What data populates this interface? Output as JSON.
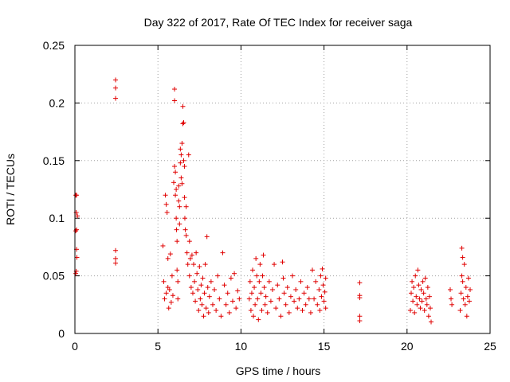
{
  "chart_data": {
    "type": "scatter",
    "title": "Day 322 of 2017, Rate Of TEC Index for receiver saga",
    "xlabel": "GPS time / hours",
    "ylabel": "ROTI / TECUs",
    "xlim": [
      0,
      25
    ],
    "ylim": [
      0,
      0.25
    ],
    "xticks": [
      0,
      5,
      10,
      15,
      20,
      25
    ],
    "yticks": [
      0,
      0.05,
      0.1,
      0.15,
      0.2,
      0.25
    ],
    "xtick_labels": [
      "0",
      "5",
      "10",
      "15",
      "20",
      "25"
    ],
    "ytick_labels": [
      "0",
      "0.05",
      "0.1",
      "0.15",
      "0.2",
      "0.25"
    ],
    "grid": true,
    "marker": "+",
    "color": "#e00000",
    "series": [
      {
        "name": "saga",
        "points": [
          [
            0.05,
            0.052
          ],
          [
            0.05,
            0.089
          ],
          [
            0.08,
            0.105
          ],
          [
            0.1,
            0.12
          ],
          [
            0.1,
            0.073
          ],
          [
            0.12,
            0.066
          ],
          [
            0.15,
            0.102
          ],
          [
            0.05,
            0.12
          ],
          [
            0.08,
            0.054
          ],
          [
            0.1,
            0.09
          ],
          [
            2.45,
            0.22
          ],
          [
            2.45,
            0.213
          ],
          [
            2.45,
            0.204
          ],
          [
            2.45,
            0.072
          ],
          [
            2.45,
            0.065
          ],
          [
            2.45,
            0.061
          ],
          [
            5.3,
            0.076
          ],
          [
            5.35,
            0.045
          ],
          [
            5.4,
            0.03
          ],
          [
            5.45,
            0.12
          ],
          [
            5.5,
            0.112
          ],
          [
            5.5,
            0.035
          ],
          [
            5.55,
            0.105
          ],
          [
            5.6,
            0.04
          ],
          [
            5.6,
            0.065
          ],
          [
            5.65,
            0.022
          ],
          [
            5.7,
            0.038
          ],
          [
            5.75,
            0.069
          ],
          [
            5.8,
            0.027
          ],
          [
            5.85,
            0.05
          ],
          [
            5.9,
            0.033
          ],
          [
            5.95,
            0.131
          ],
          [
            6.0,
            0.212
          ],
          [
            6.0,
            0.202
          ],
          [
            6.0,
            0.145
          ],
          [
            6.05,
            0.14
          ],
          [
            6.05,
            0.12
          ],
          [
            6.1,
            0.125
          ],
          [
            6.1,
            0.1
          ],
          [
            6.12,
            0.09
          ],
          [
            6.15,
            0.08
          ],
          [
            6.15,
            0.055
          ],
          [
            6.2,
            0.045
          ],
          [
            6.2,
            0.03
          ],
          [
            6.25,
            0.128
          ],
          [
            6.25,
            0.115
          ],
          [
            6.3,
            0.11
          ],
          [
            6.3,
            0.095
          ],
          [
            6.35,
            0.16
          ],
          [
            6.35,
            0.148
          ],
          [
            6.4,
            0.155
          ],
          [
            6.4,
            0.135
          ],
          [
            6.45,
            0.165
          ],
          [
            6.45,
            0.13
          ],
          [
            6.5,
            0.197
          ],
          [
            6.5,
            0.182
          ],
          [
            6.55,
            0.183
          ],
          [
            6.55,
            0.15
          ],
          [
            6.6,
            0.145
          ],
          [
            6.6,
            0.118
          ],
          [
            6.62,
            0.1
          ],
          [
            6.65,
            0.09
          ],
          [
            6.7,
            0.11
          ],
          [
            6.7,
            0.085
          ],
          [
            6.75,
            0.07
          ],
          [
            6.8,
            0.06
          ],
          [
            6.85,
            0.155
          ],
          [
            6.9,
            0.08
          ],
          [
            6.9,
            0.05
          ],
          [
            6.95,
            0.065
          ],
          [
            7.0,
            0.04
          ],
          [
            7.05,
            0.068
          ],
          [
            7.1,
            0.035
          ],
          [
            7.15,
            0.06
          ],
          [
            7.2,
            0.045
          ],
          [
            7.25,
            0.028
          ],
          [
            7.3,
            0.07
          ],
          [
            7.35,
            0.052
          ],
          [
            7.4,
            0.038
          ],
          [
            7.45,
            0.02
          ],
          [
            7.5,
            0.058
          ],
          [
            7.55,
            0.03
          ],
          [
            7.6,
            0.042
          ],
          [
            7.65,
            0.025
          ],
          [
            7.7,
            0.048
          ],
          [
            7.75,
            0.015
          ],
          [
            7.8,
            0.035
          ],
          [
            7.85,
            0.06
          ],
          [
            7.9,
            0.022
          ],
          [
            7.95,
            0.084
          ],
          [
            8.0,
            0.04
          ],
          [
            8.05,
            0.018
          ],
          [
            8.1,
            0.032
          ],
          [
            8.2,
            0.045
          ],
          [
            8.3,
            0.025
          ],
          [
            8.4,
            0.038
          ],
          [
            8.5,
            0.02
          ],
          [
            8.6,
            0.05
          ],
          [
            8.7,
            0.03
          ],
          [
            8.8,
            0.015
          ],
          [
            8.9,
            0.07
          ],
          [
            9.0,
            0.042
          ],
          [
            9.1,
            0.025
          ],
          [
            9.2,
            0.035
          ],
          [
            9.3,
            0.018
          ],
          [
            9.4,
            0.048
          ],
          [
            9.5,
            0.028
          ],
          [
            9.6,
            0.052
          ],
          [
            9.7,
            0.022
          ],
          [
            9.8,
            0.037
          ],
          [
            9.9,
            0.03
          ],
          [
            10.5,
            0.03
          ],
          [
            10.55,
            0.045
          ],
          [
            10.6,
            0.02
          ],
          [
            10.65,
            0.035
          ],
          [
            10.7,
            0.055
          ],
          [
            10.75,
            0.015
          ],
          [
            10.8,
            0.04
          ],
          [
            10.85,
            0.025
          ],
          [
            10.9,
            0.065
          ],
          [
            10.95,
            0.05
          ],
          [
            11.0,
            0.03
          ],
          [
            11.05,
            0.012
          ],
          [
            11.1,
            0.045
          ],
          [
            11.15,
            0.06
          ],
          [
            11.2,
            0.035
          ],
          [
            11.25,
            0.02
          ],
          [
            11.3,
            0.05
          ],
          [
            11.35,
            0.068
          ],
          [
            11.4,
            0.04
          ],
          [
            11.45,
            0.025
          ],
          [
            11.5,
            0.032
          ],
          [
            11.6,
            0.018
          ],
          [
            11.7,
            0.045
          ],
          [
            11.8,
            0.028
          ],
          [
            11.9,
            0.038
          ],
          [
            12.0,
            0.06
          ],
          [
            12.1,
            0.022
          ],
          [
            12.2,
            0.042
          ],
          [
            12.3,
            0.03
          ],
          [
            12.4,
            0.015
          ],
          [
            12.5,
            0.062
          ],
          [
            12.55,
            0.048
          ],
          [
            12.6,
            0.035
          ],
          [
            12.7,
            0.025
          ],
          [
            12.8,
            0.04
          ],
          [
            12.9,
            0.018
          ],
          [
            13.0,
            0.032
          ],
          [
            13.1,
            0.05
          ],
          [
            13.2,
            0.028
          ],
          [
            13.3,
            0.038
          ],
          [
            13.4,
            0.022
          ],
          [
            13.5,
            0.03
          ],
          [
            13.6,
            0.045
          ],
          [
            13.7,
            0.02
          ],
          [
            13.8,
            0.035
          ],
          [
            13.9,
            0.025
          ],
          [
            14.0,
            0.04
          ],
          [
            14.1,
            0.03
          ],
          [
            14.2,
            0.018
          ],
          [
            14.3,
            0.055
          ],
          [
            14.4,
            0.03
          ],
          [
            14.5,
            0.045
          ],
          [
            14.6,
            0.025
          ],
          [
            14.7,
            0.038
          ],
          [
            14.75,
            0.02
          ],
          [
            14.8,
            0.05
          ],
          [
            14.85,
            0.032
          ],
          [
            14.9,
            0.056
          ],
          [
            14.95,
            0.042
          ],
          [
            15.0,
            0.028
          ],
          [
            15.05,
            0.036
          ],
          [
            15.1,
            0.048
          ],
          [
            15.1,
            0.022
          ],
          [
            17.15,
            0.044
          ],
          [
            17.15,
            0.033
          ],
          [
            17.15,
            0.031
          ],
          [
            17.15,
            0.015
          ],
          [
            17.15,
            0.011
          ],
          [
            20.2,
            0.02
          ],
          [
            20.25,
            0.035
          ],
          [
            20.3,
            0.045
          ],
          [
            20.35,
            0.028
          ],
          [
            20.4,
            0.04
          ],
          [
            20.45,
            0.018
          ],
          [
            20.5,
            0.05
          ],
          [
            20.55,
            0.032
          ],
          [
            20.6,
            0.025
          ],
          [
            20.65,
            0.055
          ],
          [
            20.7,
            0.042
          ],
          [
            20.75,
            0.03
          ],
          [
            20.8,
            0.022
          ],
          [
            20.85,
            0.038
          ],
          [
            20.9,
            0.028
          ],
          [
            20.95,
            0.045
          ],
          [
            21.0,
            0.035
          ],
          [
            21.05,
            0.02
          ],
          [
            21.1,
            0.048
          ],
          [
            21.15,
            0.03
          ],
          [
            21.2,
            0.025
          ],
          [
            21.25,
            0.04
          ],
          [
            21.3,
            0.015
          ],
          [
            21.35,
            0.032
          ],
          [
            21.4,
            0.022
          ],
          [
            21.45,
            0.01
          ],
          [
            22.6,
            0.038
          ],
          [
            22.65,
            0.03
          ],
          [
            22.7,
            0.025
          ],
          [
            23.2,
            0.02
          ],
          [
            23.25,
            0.035
          ],
          [
            23.3,
            0.05
          ],
          [
            23.3,
            0.074
          ],
          [
            23.35,
            0.045
          ],
          [
            23.35,
            0.066
          ],
          [
            23.4,
            0.03
          ],
          [
            23.45,
            0.06
          ],
          [
            23.5,
            0.025
          ],
          [
            23.55,
            0.04
          ],
          [
            23.6,
            0.015
          ],
          [
            23.65,
            0.032
          ],
          [
            23.7,
            0.048
          ],
          [
            23.75,
            0.028
          ],
          [
            23.8,
            0.038
          ]
        ]
      }
    ]
  }
}
